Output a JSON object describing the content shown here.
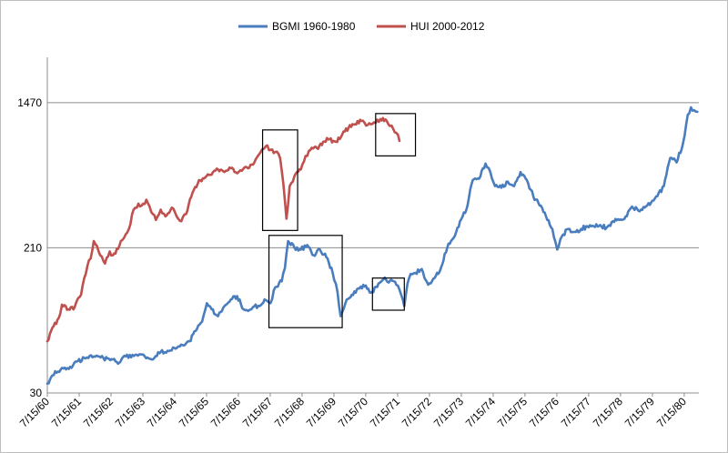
{
  "chart_data": {
    "type": "line",
    "title": "",
    "xlabel": "",
    "ylabel": "",
    "y_scale": "log",
    "ylim": [
      30,
      2700
    ],
    "y_ticks": [
      30,
      210,
      1470
    ],
    "grid": {
      "y_major": true,
      "x_major": false
    },
    "legend_position": "top",
    "x_tick_labels": [
      "7/15/60",
      "7/15/61",
      "7/15/62",
      "7/15/63",
      "7/15/64",
      "7/15/65",
      "7/15/66",
      "7/15/67",
      "7/15/68",
      "7/15/69",
      "7/15/70",
      "7/15/71",
      "7/15/72",
      "7/15/73",
      "7/15/74",
      "7/15/75",
      "7/15/76",
      "7/15/77",
      "7/15/78",
      "7/15/79",
      "7/15/80"
    ],
    "x_range_years": [
      1960.54,
      1981.0
    ],
    "series": [
      {
        "name": "BGMI 1960-1980",
        "color": "#4a7dbe",
        "points": [
          [
            1960.54,
            34
          ],
          [
            1960.7,
            38
          ],
          [
            1961.0,
            42
          ],
          [
            1961.3,
            42
          ],
          [
            1961.5,
            46
          ],
          [
            1961.7,
            48
          ],
          [
            1962.0,
            49
          ],
          [
            1962.3,
            48
          ],
          [
            1962.6,
            47
          ],
          [
            1962.8,
            45
          ],
          [
            1963.0,
            49
          ],
          [
            1963.3,
            50
          ],
          [
            1963.6,
            49
          ],
          [
            1963.9,
            48
          ],
          [
            1964.1,
            52
          ],
          [
            1964.4,
            53
          ],
          [
            1964.7,
            56
          ],
          [
            1965.0,
            60
          ],
          [
            1965.2,
            69
          ],
          [
            1965.4,
            78
          ],
          [
            1965.55,
            100
          ],
          [
            1965.7,
            92
          ],
          [
            1965.9,
            84
          ],
          [
            1966.1,
            96
          ],
          [
            1966.3,
            105
          ],
          [
            1966.5,
            110
          ],
          [
            1966.7,
            92
          ],
          [
            1966.85,
            90
          ],
          [
            1967.0,
            95
          ],
          [
            1967.2,
            96
          ],
          [
            1967.4,
            104
          ],
          [
            1967.55,
            100
          ],
          [
            1967.7,
            124
          ],
          [
            1967.9,
            134
          ],
          [
            1968.0,
            160
          ],
          [
            1968.1,
            230
          ],
          [
            1968.3,
            210
          ],
          [
            1968.5,
            205
          ],
          [
            1968.7,
            218
          ],
          [
            1968.9,
            190
          ],
          [
            1969.1,
            205
          ],
          [
            1969.3,
            185
          ],
          [
            1969.5,
            150
          ],
          [
            1969.65,
            117
          ],
          [
            1969.75,
            84
          ],
          [
            1969.9,
            100
          ],
          [
            1970.1,
            112
          ],
          [
            1970.3,
            122
          ],
          [
            1970.5,
            125
          ],
          [
            1970.7,
            115
          ],
          [
            1970.9,
            124
          ],
          [
            1971.1,
            138
          ],
          [
            1971.3,
            135
          ],
          [
            1971.5,
            128
          ],
          [
            1971.65,
            112
          ],
          [
            1971.75,
            96
          ],
          [
            1971.85,
            130
          ],
          [
            1971.95,
            148
          ],
          [
            1972.1,
            150
          ],
          [
            1972.3,
            158
          ],
          [
            1972.5,
            128
          ],
          [
            1972.7,
            140
          ],
          [
            1972.9,
            160
          ],
          [
            1973.1,
            210
          ],
          [
            1973.3,
            240
          ],
          [
            1973.5,
            300
          ],
          [
            1973.7,
            350
          ],
          [
            1973.9,
            520
          ],
          [
            1974.1,
            530
          ],
          [
            1974.3,
            650
          ],
          [
            1974.45,
            580
          ],
          [
            1974.6,
            480
          ],
          [
            1974.8,
            470
          ],
          [
            1975.0,
            510
          ],
          [
            1975.2,
            480
          ],
          [
            1975.4,
            580
          ],
          [
            1975.6,
            520
          ],
          [
            1975.8,
            420
          ],
          [
            1976.0,
            370
          ],
          [
            1976.2,
            320
          ],
          [
            1976.4,
            270
          ],
          [
            1976.55,
            205
          ],
          [
            1976.7,
            245
          ],
          [
            1976.9,
            270
          ],
          [
            1977.1,
            260
          ],
          [
            1977.3,
            270
          ],
          [
            1977.5,
            280
          ],
          [
            1977.7,
            280
          ],
          [
            1977.9,
            285
          ],
          [
            1978.1,
            275
          ],
          [
            1978.3,
            300
          ],
          [
            1978.5,
            305
          ],
          [
            1978.7,
            320
          ],
          [
            1978.9,
            365
          ],
          [
            1979.1,
            345
          ],
          [
            1979.3,
            360
          ],
          [
            1979.5,
            385
          ],
          [
            1979.7,
            420
          ],
          [
            1979.9,
            480
          ],
          [
            1980.1,
            700
          ],
          [
            1980.3,
            660
          ],
          [
            1980.5,
            850
          ],
          [
            1980.65,
            1250
          ],
          [
            1980.75,
            1380
          ],
          [
            1980.85,
            1330
          ],
          [
            1980.95,
            1300
          ]
        ]
      },
      {
        "name": "HUI 2000-2012",
        "color": "#c0504d",
        "points": [
          [
            1960.54,
            60
          ],
          [
            1960.7,
            72
          ],
          [
            1960.9,
            82
          ],
          [
            1961.0,
            98
          ],
          [
            1961.2,
            92
          ],
          [
            1961.4,
            95
          ],
          [
            1961.6,
            112
          ],
          [
            1961.7,
            140
          ],
          [
            1961.8,
            165
          ],
          [
            1961.9,
            182
          ],
          [
            1962.0,
            230
          ],
          [
            1962.1,
            215
          ],
          [
            1962.2,
            190
          ],
          [
            1962.35,
            170
          ],
          [
            1962.5,
            200
          ],
          [
            1962.6,
            190
          ],
          [
            1962.8,
            215
          ],
          [
            1962.95,
            240
          ],
          [
            1963.1,
            270
          ],
          [
            1963.25,
            350
          ],
          [
            1963.4,
            380
          ],
          [
            1963.5,
            370
          ],
          [
            1963.65,
            400
          ],
          [
            1963.8,
            340
          ],
          [
            1963.95,
            305
          ],
          [
            1964.1,
            350
          ],
          [
            1964.25,
            320
          ],
          [
            1964.45,
            360
          ],
          [
            1964.6,
            320
          ],
          [
            1964.75,
            300
          ],
          [
            1964.9,
            330
          ],
          [
            1965.1,
            440
          ],
          [
            1965.3,
            520
          ],
          [
            1965.5,
            540
          ],
          [
            1965.7,
            560
          ],
          [
            1965.9,
            600
          ],
          [
            1966.1,
            580
          ],
          [
            1966.3,
            610
          ],
          [
            1966.5,
            570
          ],
          [
            1966.65,
            590
          ],
          [
            1966.8,
            620
          ],
          [
            1967.0,
            640
          ],
          [
            1967.2,
            740
          ],
          [
            1967.4,
            820
          ],
          [
            1967.55,
            780
          ],
          [
            1967.7,
            760
          ],
          [
            1967.85,
            700
          ],
          [
            1967.95,
            500
          ],
          [
            1968.05,
            310
          ],
          [
            1968.15,
            480
          ],
          [
            1968.3,
            550
          ],
          [
            1968.5,
            600
          ],
          [
            1968.65,
            720
          ],
          [
            1968.8,
            780
          ],
          [
            1969.0,
            800
          ],
          [
            1969.2,
            870
          ],
          [
            1969.4,
            900
          ],
          [
            1969.6,
            870
          ],
          [
            1969.8,
            960
          ],
          [
            1970.0,
            1050
          ],
          [
            1970.2,
            1100
          ],
          [
            1970.4,
            1150
          ],
          [
            1970.55,
            1080
          ],
          [
            1970.7,
            1100
          ],
          [
            1970.85,
            1120
          ],
          [
            1971.0,
            1180
          ],
          [
            1971.2,
            1150
          ],
          [
            1971.35,
            1080
          ],
          [
            1971.5,
            980
          ],
          [
            1971.6,
            880
          ]
        ]
      }
    ],
    "annotation_boxes": [
      {
        "x0": 1967.3,
        "x1": 1968.4,
        "y0": 265,
        "y1": 1020
      },
      {
        "x0": 1967.5,
        "x1": 1969.8,
        "y0": 72,
        "y1": 248
      },
      {
        "x0": 1970.85,
        "x1": 1972.1,
        "y0": 720,
        "y1": 1270
      },
      {
        "x0": 1970.75,
        "x1": 1971.75,
        "y0": 91,
        "y1": 140
      }
    ]
  }
}
